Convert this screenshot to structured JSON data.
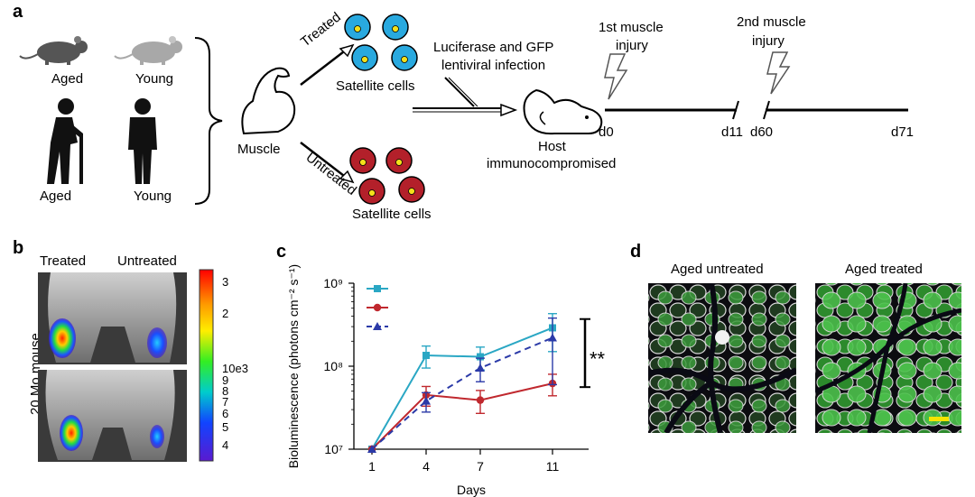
{
  "panel_a": {
    "letter": "a",
    "mouse_aged_label": "Aged",
    "mouse_young_label": "Young",
    "human_aged_label": "Aged",
    "human_young_label": "Young",
    "muscle_label": "Muscle",
    "treated_label": "Treated",
    "untreated_label": "Untreated",
    "satellite_top_label": "Satellite cells",
    "satellite_bottom_label": "Satellite cells",
    "infection_label_line1": "Luciferase and GFP",
    "infection_label_line2": "lentiviral infection",
    "host_label_line1": "Host",
    "host_label_line2": "immunocompromised",
    "injury1_line1": "1st muscle",
    "injury1_line2": "injury",
    "injury2_line1": "2nd muscle",
    "injury2_line2": "injury",
    "timeline": [
      "d0",
      "d11",
      "d60",
      "d71"
    ]
  },
  "panel_b": {
    "letter": "b",
    "treated_label": "Treated",
    "untreated_label": "Untreated",
    "side_label": "20 Mo mouse",
    "colorbar_ticks": [
      "3",
      "2",
      "10e3",
      "9",
      "8",
      "7",
      "6",
      "5",
      "4"
    ]
  },
  "panel_c": {
    "letter": "c",
    "significance": "**",
    "chart_data": {
      "type": "line",
      "x": [
        1,
        4,
        7,
        11
      ],
      "xlabel": "Days",
      "ylabel": "Bioluminescence (photons cm⁻² s⁻¹)",
      "yscale": "log",
      "ylim": [
        10000000,
        1000000000
      ],
      "xticks": [
        "1",
        "4",
        "7",
        "11"
      ],
      "yticks": [
        "10⁷",
        "10⁸",
        "10⁹"
      ],
      "series": [
        {
          "color": "#2aa7c4",
          "style": "solid",
          "marker": "square",
          "values": [
            10000000,
            135000000,
            130000000,
            290000000
          ],
          "err": [
            0,
            40000000,
            40000000,
            140000000
          ]
        },
        {
          "color": "#c0282e",
          "style": "solid",
          "marker": "circle",
          "values": [
            10000000,
            45000000,
            39000000,
            62000000
          ],
          "err": [
            0,
            12000000,
            12000000,
            18000000
          ]
        },
        {
          "color": "#2b3aa8",
          "style": "dashed",
          "marker": "triangle",
          "values": [
            10000000,
            38000000,
            95000000,
            220000000
          ],
          "err": [
            0,
            10000000,
            30000000,
            160000000
          ]
        }
      ]
    }
  },
  "panel_d": {
    "letter": "d",
    "left_title": "Aged untreated",
    "right_title": "Aged treated"
  },
  "colors": {
    "treated_cell": "#29a9df",
    "untreated_cell": "#b3202a",
    "nucleus": "#f4e01a",
    "scale_bar": "#f5e400"
  }
}
